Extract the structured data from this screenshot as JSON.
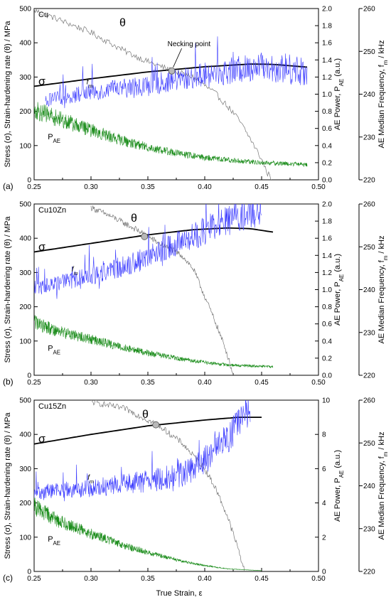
{
  "chart_data": [
    {
      "type": "line",
      "panel_letter": "(a)",
      "panel_name": "Cu",
      "xlim": [
        0.25,
        0.5
      ],
      "x_ticks": [
        "0.25",
        "0.30",
        "0.35",
        "0.40",
        "0.45",
        "0.50"
      ],
      "left_axis": {
        "label": "Stress (σ), Strain-hardening rate (θ) / MPa",
        "ylim": [
          0,
          500
        ],
        "ticks": [
          "0",
          "100",
          "200",
          "300",
          "400",
          "500"
        ]
      },
      "power_axis": {
        "label": "AE Power, P_AE (a.u.)",
        "ylim": [
          0,
          2.0
        ],
        "ticks": [
          "0.0",
          "0.2",
          "0.4",
          "0.6",
          "0.8",
          "1.0",
          "1.2",
          "1.4",
          "1.6",
          "1.8",
          "2.0"
        ]
      },
      "frequency_axis": {
        "label": "AE Median Frequency, f_m / kHz",
        "ylim": [
          220,
          260
        ],
        "ticks": [
          "220",
          "230",
          "240",
          "250",
          "260"
        ]
      },
      "series": [
        {
          "name": "σ",
          "axis": "stress",
          "color": "#000000",
          "x": [
            0.25,
            0.3,
            0.35,
            0.4,
            0.44,
            0.46,
            0.49
          ],
          "y": [
            273,
            295,
            315,
            330,
            338,
            337,
            329
          ]
        },
        {
          "name": "θ",
          "axis": "stress",
          "color": "#777777",
          "x": [
            0.25,
            0.27,
            0.3,
            0.33,
            0.35,
            0.37,
            0.39,
            0.41,
            0.42,
            0.43,
            0.44,
            0.45,
            0.455,
            0.46
          ],
          "y": [
            495,
            470,
            430,
            375,
            345,
            320,
            300,
            250,
            215,
            175,
            120,
            60,
            20,
            0
          ]
        },
        {
          "name": "f_m",
          "axis": "frequency",
          "color": "#3a3aff",
          "x": [
            0.26,
            0.3,
            0.35,
            0.4,
            0.45,
            0.49
          ],
          "y": [
            238.5,
            240.5,
            242.0,
            244.5,
            246.5,
            245.5
          ]
        },
        {
          "name": "P_AE",
          "axis": "power",
          "color": "#1a8c1a",
          "x": [
            0.25,
            0.27,
            0.3,
            0.33,
            0.35,
            0.38,
            0.4,
            0.43,
            0.45,
            0.47,
            0.49
          ],
          "y": [
            0.82,
            0.72,
            0.58,
            0.45,
            0.38,
            0.3,
            0.26,
            0.22,
            0.2,
            0.19,
            0.18
          ]
        }
      ],
      "necking_point": {
        "x": 0.371,
        "y": 318
      },
      "annotations": [
        "Necking point"
      ]
    },
    {
      "type": "line",
      "panel_letter": "(b)",
      "panel_name": "Cu10Zn",
      "xlim": [
        0.25,
        0.5
      ],
      "x_ticks": [
        "0.25",
        "0.30",
        "0.35",
        "0.40",
        "0.45",
        "0.50"
      ],
      "left_axis": {
        "label": "Stress (σ), Strain-hardening rate (θ) / MPa",
        "ylim": [
          0,
          500
        ],
        "ticks": [
          "0",
          "100",
          "200",
          "300",
          "400",
          "500"
        ]
      },
      "power_axis": {
        "label": "AE Power, P_AE (a.u.)",
        "ylim": [
          0,
          2.0
        ],
        "ticks": [
          "0.0",
          "0.2",
          "0.4",
          "0.6",
          "0.8",
          "1.0",
          "1.2",
          "1.4",
          "1.6",
          "1.8",
          "2.0"
        ]
      },
      "frequency_axis": {
        "label": "AE Median Frequency, f_m / kHz",
        "ylim": [
          220,
          260
        ],
        "ticks": [
          "220",
          "230",
          "240",
          "250",
          "260"
        ]
      },
      "series": [
        {
          "name": "σ",
          "axis": "stress",
          "color": "#000000",
          "x": [
            0.25,
            0.3,
            0.35,
            0.39,
            0.42,
            0.44,
            0.46
          ],
          "y": [
            360,
            385,
            410,
            425,
            430,
            428,
            418
          ]
        },
        {
          "name": "θ",
          "axis": "stress",
          "color": "#777777",
          "x": [
            0.3,
            0.32,
            0.34,
            0.35,
            0.36,
            0.38,
            0.39,
            0.4,
            0.41,
            0.42,
            0.425
          ],
          "y": [
            490,
            460,
            425,
            405,
            385,
            350,
            310,
            230,
            150,
            60,
            0
          ]
        },
        {
          "name": "f_m",
          "axis": "frequency",
          "color": "#3a3aff",
          "x": [
            0.25,
            0.28,
            0.31,
            0.34,
            0.37,
            0.39,
            0.41,
            0.43,
            0.45
          ],
          "y": [
            240.5,
            242.0,
            244.0,
            246.5,
            250.0,
            252.5,
            255.0,
            257.0,
            258.5
          ]
        },
        {
          "name": "P_AE",
          "axis": "power",
          "color": "#1a8c1a",
          "x": [
            0.25,
            0.27,
            0.3,
            0.33,
            0.35,
            0.38,
            0.4,
            0.42,
            0.44,
            0.46
          ],
          "y": [
            0.62,
            0.52,
            0.42,
            0.32,
            0.26,
            0.19,
            0.15,
            0.12,
            0.11,
            0.1
          ]
        }
      ],
      "necking_point": {
        "x": 0.347,
        "y": 405
      }
    },
    {
      "type": "line",
      "panel_letter": "(c)",
      "panel_name": "Cu15Zn",
      "xlim": [
        0.25,
        0.5
      ],
      "x_ticks": [
        "0.25",
        "0.30",
        "0.35",
        "0.40",
        "0.45",
        "0.50"
      ],
      "xlabel": "True Strain, ε",
      "left_axis": {
        "label": "Stress (σ), Strain-hardening rate (θ) / MPa",
        "ylim": [
          0,
          500
        ],
        "ticks": [
          "0",
          "100",
          "200",
          "300",
          "400",
          "500"
        ]
      },
      "power_axis": {
        "label": "AE Power, P_AE (a.u.)",
        "ylim": [
          0,
          10
        ],
        "ticks": [
          "0",
          "2",
          "4",
          "6",
          "8",
          "10"
        ]
      },
      "frequency_axis": {
        "label": "AE Median Frequency, f_m / kHz",
        "ylim": [
          220,
          260
        ],
        "ticks": [
          "220",
          "230",
          "240",
          "250",
          "260"
        ]
      },
      "series": [
        {
          "name": "σ",
          "axis": "stress",
          "color": "#000000",
          "x": [
            0.25,
            0.3,
            0.35,
            0.4,
            0.43,
            0.45
          ],
          "y": [
            372,
            400,
            425,
            442,
            450,
            450
          ]
        },
        {
          "name": "θ",
          "axis": "stress",
          "color": "#777777",
          "x": [
            0.3,
            0.33,
            0.36,
            0.38,
            0.4,
            0.41,
            0.42,
            0.43,
            0.435
          ],
          "y": [
            495,
            475,
            425,
            375,
            300,
            240,
            160,
            60,
            0
          ]
        },
        {
          "name": "f_m",
          "axis": "frequency",
          "color": "#3a3aff",
          "x": [
            0.25,
            0.3,
            0.35,
            0.38,
            0.4,
            0.42,
            0.44
          ],
          "y": [
            238.5,
            239.5,
            241.0,
            242.5,
            246.0,
            251.0,
            258.0
          ]
        },
        {
          "name": "P_AE",
          "axis": "power",
          "color": "#1a8c1a",
          "x": [
            0.25,
            0.27,
            0.3,
            0.33,
            0.35,
            0.38,
            0.4,
            0.42,
            0.45
          ],
          "y": [
            3.8,
            3.0,
            2.2,
            1.5,
            1.1,
            0.6,
            0.35,
            0.15,
            0.05
          ]
        }
      ],
      "necking_point": {
        "x": 0.357,
        "y": 428
      }
    }
  ]
}
